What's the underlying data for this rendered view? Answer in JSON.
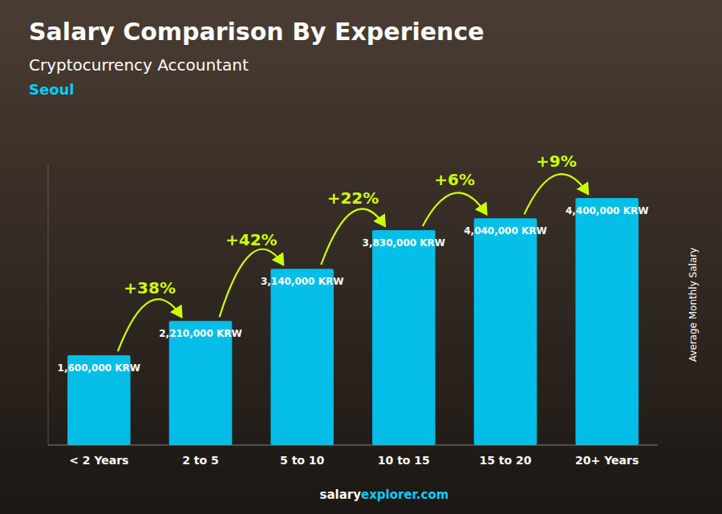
{
  "chart_data": {
    "type": "bar",
    "title": "Salary Comparison By Experience",
    "subtitle": "Cryptocurrency Accountant",
    "city": "Seoul",
    "ylabel": "Average Monthly Salary",
    "categories": [
      "< 2 Years",
      "2 to 5",
      "5 to 10",
      "10 to 15",
      "15 to 20",
      "20+ Years"
    ],
    "values": [
      1600000,
      2210000,
      3140000,
      3830000,
      4040000,
      4400000
    ],
    "value_labels": [
      "1,600,000 KRW",
      "2,210,000 KRW",
      "3,140,000 KRW",
      "3,830,000 KRW",
      "4,040,000 KRW",
      "4,400,000 KRW"
    ],
    "data_labels": true,
    "annotations": [
      "+38%",
      "+42%",
      "+22%",
      "+6%",
      "+9%"
    ],
    "footer": [
      "salary",
      "explorer.com"
    ],
    "color": "#00CFFF",
    "ylim": [
      0,
      5000000
    ],
    "tick_labels": "x",
    "grid": false
  }
}
